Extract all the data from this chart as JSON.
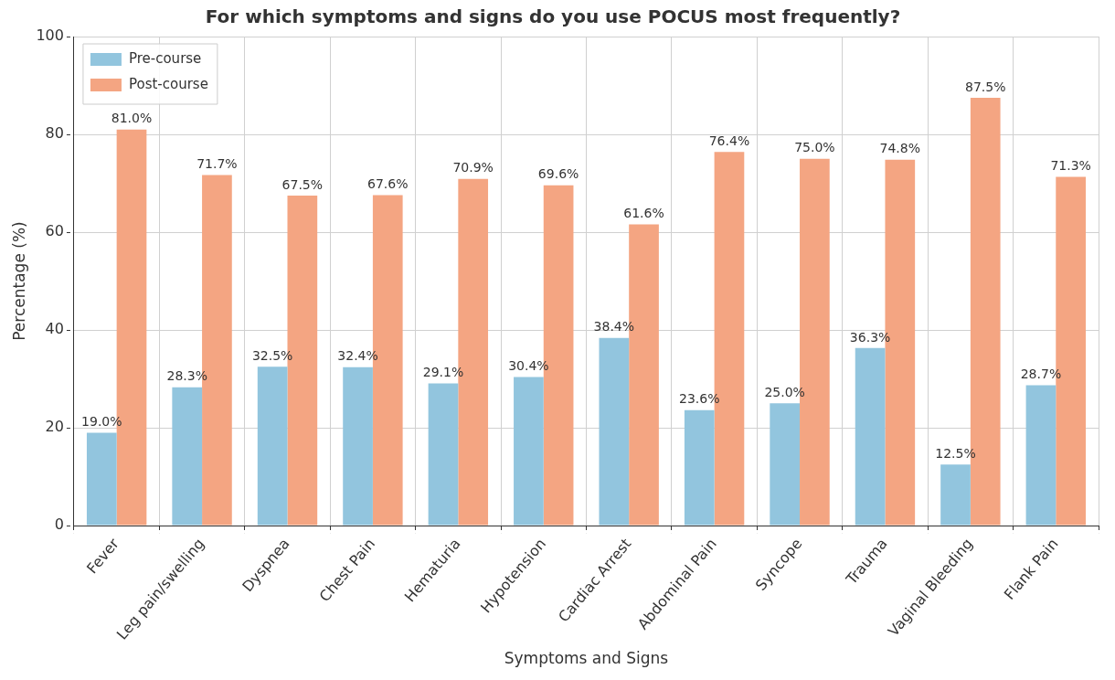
{
  "chart_data": {
    "type": "bar",
    "title": "For which symptoms and signs do you use POCUS most frequently?",
    "xlabel": "Symptoms and Signs",
    "ylabel": "Percentage (%)",
    "categories": [
      "Fever",
      "Leg pain/swelling",
      "Dyspnea",
      "Chest Pain",
      "Hematuria",
      "Hypotension",
      "Cardiac Arrest",
      "Abdominal Pain",
      "Syncope",
      "Trauma",
      "Vaginal Bleeding",
      "Flank Pain"
    ],
    "series": [
      {
        "name": "Pre-course",
        "color": "#92c5de",
        "values": [
          19.0,
          28.3,
          32.5,
          32.4,
          29.1,
          30.4,
          38.4,
          23.6,
          25.0,
          36.3,
          12.5,
          28.7
        ],
        "value_labels": [
          "19.0%",
          "28.3%",
          "32.5%",
          "32.4%",
          "29.1%",
          "30.4%",
          "38.4%",
          "23.6%",
          "25.0%",
          "36.3%",
          "12.5%",
          "28.7%"
        ]
      },
      {
        "name": "Post-course",
        "color": "#f4a582",
        "values": [
          81.0,
          71.7,
          67.5,
          67.6,
          70.9,
          69.6,
          61.6,
          76.4,
          75.0,
          74.8,
          87.5,
          71.3
        ],
        "value_labels": [
          "81.0%",
          "71.7%",
          "67.5%",
          "67.6%",
          "70.9%",
          "69.6%",
          "61.6%",
          "76.4%",
          "75.0%",
          "74.8%",
          "87.5%",
          "71.3%"
        ]
      }
    ],
    "ylim": [
      0,
      100
    ],
    "yticks": [
      0,
      20,
      40,
      60,
      80,
      100
    ],
    "grid": true,
    "legend": "top left"
  }
}
